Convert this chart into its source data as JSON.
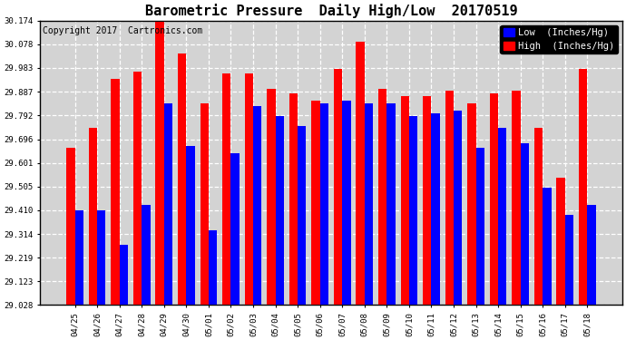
{
  "title": "Barometric Pressure  Daily High/Low  20170519",
  "copyright": "Copyright 2017  Cartronics.com",
  "legend_low": "Low  (Inches/Hg)",
  "legend_high": "High  (Inches/Hg)",
  "dates": [
    "04/25",
    "04/26",
    "04/27",
    "04/28",
    "04/29",
    "04/30",
    "05/01",
    "05/02",
    "05/03",
    "05/04",
    "05/05",
    "05/06",
    "05/07",
    "05/08",
    "05/09",
    "05/10",
    "05/11",
    "05/12",
    "05/13",
    "05/14",
    "05/15",
    "05/16",
    "05/17",
    "05/18"
  ],
  "high_values": [
    29.66,
    29.74,
    29.94,
    29.97,
    30.17,
    30.04,
    29.84,
    29.96,
    29.96,
    29.9,
    29.88,
    29.85,
    29.98,
    30.09,
    29.9,
    29.87,
    29.87,
    29.89,
    29.84,
    29.88,
    29.89,
    29.74,
    29.54,
    29.98
  ],
  "low_values": [
    29.41,
    29.41,
    29.27,
    29.43,
    29.84,
    29.67,
    29.33,
    29.64,
    29.83,
    29.79,
    29.75,
    29.84,
    29.85,
    29.84,
    29.84,
    29.79,
    29.8,
    29.81,
    29.66,
    29.74,
    29.68,
    29.5,
    29.39,
    29.43
  ],
  "ylim_min": 29.028,
  "ylim_max": 30.174,
  "yticks": [
    29.028,
    29.123,
    29.219,
    29.314,
    29.41,
    29.505,
    29.601,
    29.696,
    29.792,
    29.887,
    29.983,
    30.078,
    30.174
  ],
  "bar_width": 0.38,
  "high_color": "#ff0000",
  "low_color": "#0000ff",
  "bg_color": "#ffffff",
  "plot_bg_color": "#d3d3d3",
  "title_fontsize": 11,
  "copyright_fontsize": 7,
  "tick_fontsize": 6.5,
  "legend_fontsize": 7.5
}
